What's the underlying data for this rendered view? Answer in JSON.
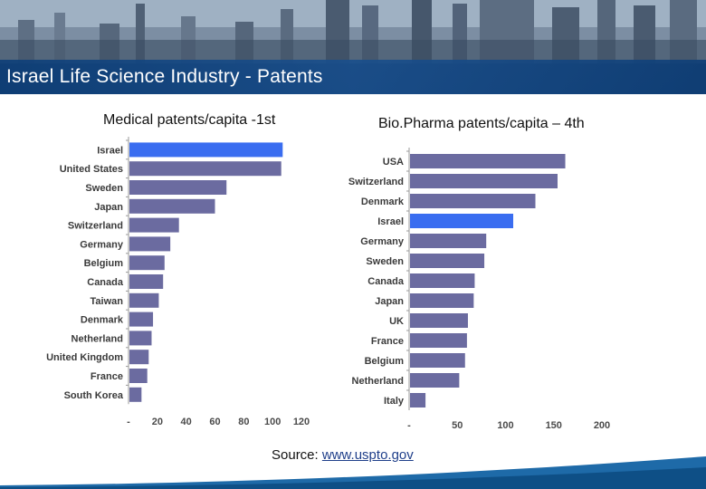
{
  "slide": {
    "title": "Israel Life Science Industry - Patents",
    "source_label": "Source:",
    "source_link": "www.uspto.gov"
  },
  "colors": {
    "bar": "#6b6ba0",
    "highlight": "#3a6df0",
    "banner": "#1a4f8c"
  },
  "chart_data": [
    {
      "type": "bar",
      "orientation": "horizontal",
      "title": "Medical patents/capita -1st",
      "categories": [
        "Israel",
        "United States",
        "Sweden",
        "Japan",
        "Switzerland",
        "Germany",
        "Belgium",
        "Canada",
        "Taiwan",
        "Denmark",
        "Netherland",
        "United Kingdom",
        "France",
        "South Korea"
      ],
      "values": [
        107,
        106,
        68,
        60,
        35,
        29,
        25,
        24,
        21,
        17,
        16,
        14,
        13,
        9
      ],
      "highlight": "Israel",
      "xlim": [
        0,
        120
      ],
      "xticks": [
        "-",
        "20",
        "40",
        "60",
        "80",
        "100",
        "120"
      ],
      "xtick_values": [
        0,
        20,
        40,
        60,
        80,
        100,
        120
      ],
      "grid": false
    },
    {
      "type": "bar",
      "orientation": "horizontal",
      "title": "Bio.Pharma patents/capita – 4th",
      "categories": [
        "USA",
        "Switzerland",
        "Denmark",
        "Israel",
        "Germany",
        "Sweden",
        "Canada",
        "Japan",
        "UK",
        "France",
        "Belgium",
        "Netherland",
        "Italy"
      ],
      "values": [
        162,
        154,
        131,
        108,
        80,
        78,
        68,
        67,
        61,
        60,
        58,
        52,
        17
      ],
      "highlight": "Israel",
      "xlim": [
        0,
        200
      ],
      "xticks": [
        "-",
        "50",
        "100",
        "150",
        "200"
      ],
      "xtick_values": [
        0,
        50,
        100,
        150,
        200
      ],
      "grid": false
    }
  ]
}
